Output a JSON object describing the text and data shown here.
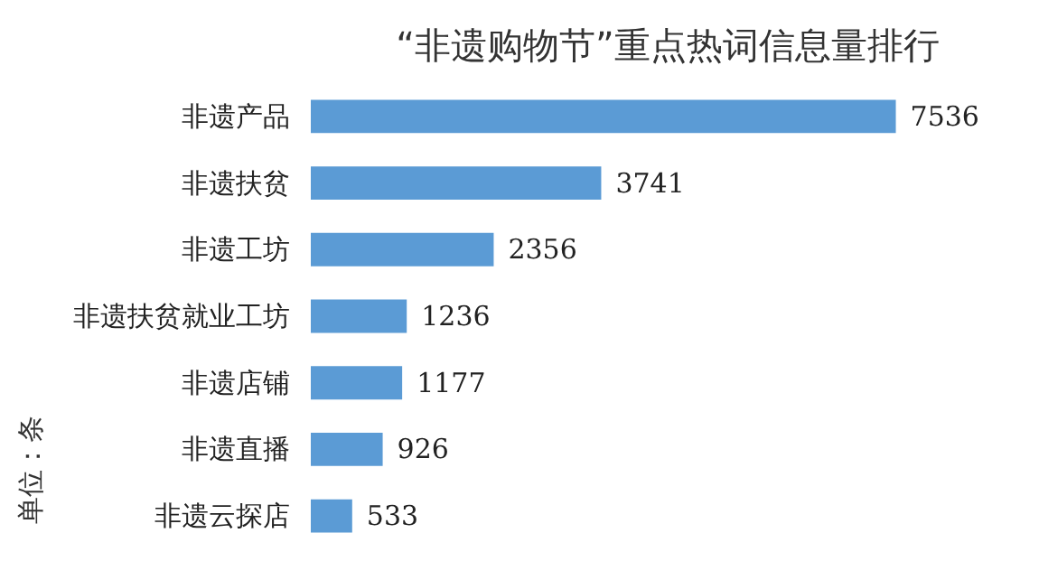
{
  "chart_data": {
    "type": "bar",
    "orientation": "horizontal",
    "title": "“非遗购物节”重点热词信息量排行",
    "categories": [
      "非遗产品",
      "非遗扶贫",
      "非遗工坊",
      "非遗扶贫就业工坊",
      "非遗店铺",
      "非遗直播",
      "非遗云探店"
    ],
    "values": [
      7536,
      3741,
      2356,
      1236,
      1177,
      926,
      533
    ],
    "color": "#5b9bd5",
    "data_labels": true,
    "annotations": [
      "单位：条"
    ]
  }
}
